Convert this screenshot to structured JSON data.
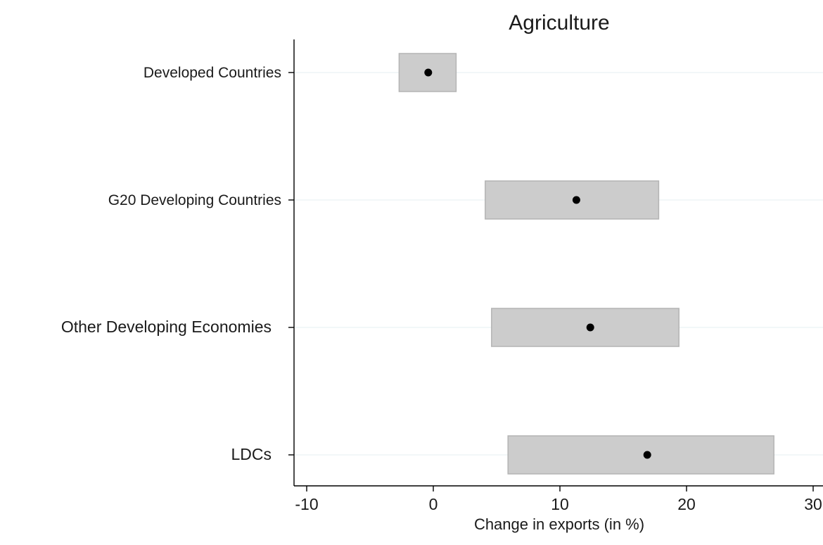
{
  "chart_data": {
    "type": "scatter",
    "title": "Agriculture",
    "xlabel": "Change in exports (in %)",
    "ylabel": "",
    "xlim": [
      -10,
      30
    ],
    "x_ticks": [
      -10,
      0,
      10,
      20,
      30
    ],
    "x_tick_labels": [
      "-10",
      "0",
      "10",
      "20",
      "30"
    ],
    "categories": [
      "Developed Countries",
      "G20 Developing Countries",
      "Other Developing Economies",
      "LDCs"
    ],
    "series": [
      {
        "point": [
          -0.4,
          11.3,
          12.4,
          16.9
        ],
        "range_low": [
          -2.7,
          4.1,
          4.6,
          5.9
        ],
        "range_high": [
          1.8,
          17.8,
          19.4,
          26.9
        ]
      }
    ],
    "grid": true,
    "colors": {
      "range_fill": "#cccccc",
      "range_stroke": "#b4b4b4",
      "point": "#000000",
      "gridline": "#eaf2f3",
      "axis": "#000000"
    }
  }
}
